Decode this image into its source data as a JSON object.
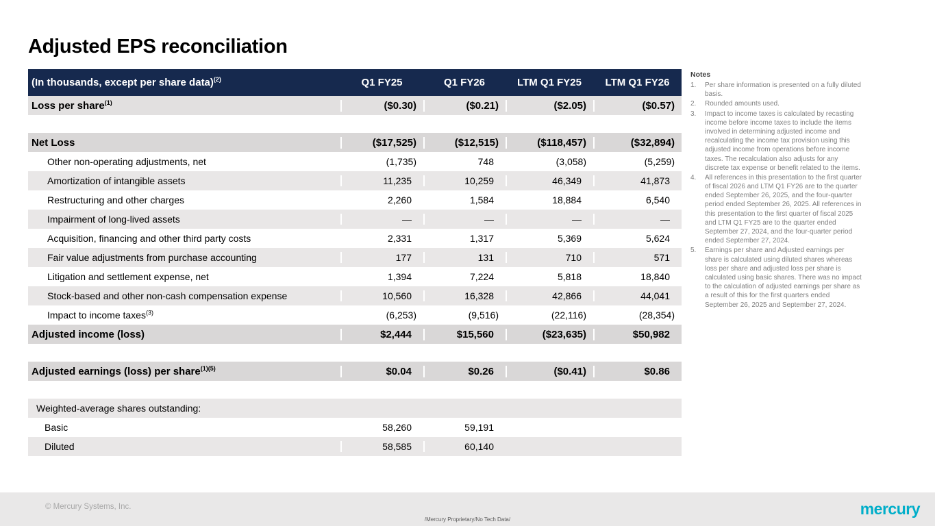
{
  "slide": {
    "title": "Adjusted EPS reconciliation"
  },
  "table": {
    "header": {
      "label": "(In thousands, except per share data)",
      "label_sup": "(2)",
      "columns": [
        "Q1 FY25",
        "Q1 FY26",
        "LTM Q1 FY25",
        "LTM Q1 FY26"
      ]
    },
    "rows": [
      {
        "variant": "eps",
        "label": "Loss per share",
        "sup": "(1)",
        "values": [
          "($0.30)",
          "($0.21)",
          "($2.05)",
          "($0.57)"
        ]
      },
      {
        "variant": "spacer",
        "values": []
      },
      {
        "variant": "total",
        "label": "Net Loss",
        "values": [
          "($17,525)",
          "($12,515)",
          "($118,457)",
          "($32,894)"
        ]
      },
      {
        "variant": "item white",
        "label": "Other non-operating adjustments, net",
        "values": [
          "(1,735)",
          "748",
          "(3,058)",
          "(5,259)"
        ]
      },
      {
        "variant": "item gray",
        "label": "Amortization of intangible assets",
        "values": [
          "11,235",
          "10,259",
          "46,349",
          "41,873"
        ]
      },
      {
        "variant": "item white",
        "label": "Restructuring and other charges",
        "values": [
          "2,260",
          "1,584",
          "18,884",
          "6,540"
        ]
      },
      {
        "variant": "item gray",
        "label": "Impairment of long-lived assets",
        "values": [
          "—",
          "—",
          "—",
          "—"
        ]
      },
      {
        "variant": "item white",
        "label": "Acquisition, financing and other third party costs",
        "values": [
          "2,331",
          "1,317",
          "5,369",
          "5,624"
        ]
      },
      {
        "variant": "item gray",
        "label": "Fair value adjustments from purchase accounting",
        "values": [
          "177",
          "131",
          "710",
          "571"
        ]
      },
      {
        "variant": "item white",
        "label": "Litigation and settlement expense, net",
        "values": [
          "1,394",
          "7,224",
          "5,818",
          "18,840"
        ]
      },
      {
        "variant": "item gray",
        "label": "Stock-based and other non-cash compensation expense",
        "values": [
          "10,560",
          "16,328",
          "42,866",
          "44,041"
        ]
      },
      {
        "variant": "item white",
        "label": "Impact to income taxes",
        "sup": "(3)",
        "values": [
          "(6,253)",
          "(9,516)",
          "(22,116)",
          "(28,354)"
        ]
      },
      {
        "variant": "total",
        "label": "Adjusted income (loss)",
        "values": [
          "$2,444",
          "$15,560",
          "($23,635)",
          "$50,982"
        ]
      },
      {
        "variant": "spacer",
        "values": []
      },
      {
        "variant": "total",
        "label": "Adjusted earnings (loss) per share",
        "sup": "(1)(5)",
        "values": [
          "$0.04",
          "$0.26",
          "($0.41)",
          "$0.86"
        ]
      },
      {
        "variant": "spacer",
        "values": []
      },
      {
        "variant": "section",
        "label": "Weighted-average shares outstanding:",
        "values": [
          "",
          "",
          "",
          ""
        ]
      },
      {
        "variant": "sub white",
        "label": "Basic",
        "values": [
          "58,260",
          "59,191",
          "",
          ""
        ]
      },
      {
        "variant": "sub gray",
        "label": "Diluted",
        "values": [
          "58,585",
          "60,140",
          "",
          ""
        ]
      }
    ]
  },
  "notes": {
    "title": "Notes",
    "items": [
      {
        "num": "1.",
        "text": "Per share information is presented on a fully diluted basis."
      },
      {
        "num": "2.",
        "text": "Rounded amounts used."
      },
      {
        "num": "3.",
        "text": "Impact to income taxes is calculated by recasting income before income taxes to include the items involved in determining adjusted income and recalculating the income tax provision using this adjusted income from operations before income taxes. The recalculation also adjusts for any discrete tax expense or benefit related to the items."
      },
      {
        "num": "4.",
        "text": "All references in this presentation to the first quarter of fiscal 2026 and LTM Q1 FY26 are to the quarter ended September 26, 2025, and the four-quarter period ended September 26, 2025.  All references in this presentation to the first quarter of fiscal 2025 and LTM Q1 FY25 are to the quarter ended September 27, 2024, and the four-quarter period ended September 27, 2024."
      },
      {
        "num": "5.",
        "text": "Earnings per share and Adjusted earnings per share is calculated using diluted shares whereas loss per share and adjusted loss per share is calculated using basic shares. There was no impact to the calculation of adjusted earnings per share as a result of this for the first quarters ended September 26, 2025 and September 27, 2024."
      }
    ]
  },
  "footer": {
    "copyright": "© Mercury Systems, Inc.",
    "proprietary": "/Mercury Proprietary/No Tech Data/",
    "logo": "mercury"
  },
  "colors": {
    "header_bg": "#16294e",
    "stripe": "#e9e7e7",
    "total_bg": "#d9d7d7",
    "footer_bg": "#e9e8e8",
    "logo": "#00aec9"
  }
}
